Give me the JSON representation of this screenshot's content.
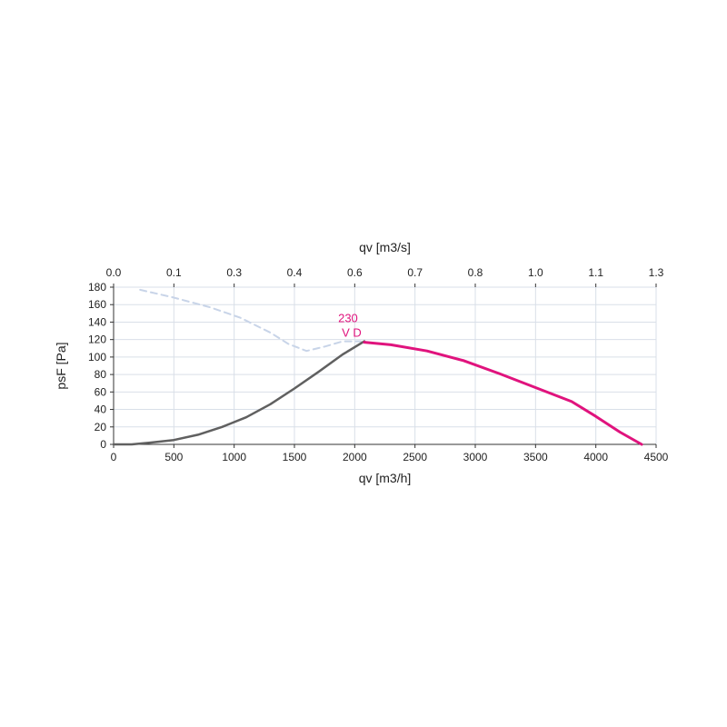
{
  "chart_data": {
    "type": "line",
    "xlabel": "qv [m3/h]",
    "ylabel": "psF [Pa]",
    "x2label": "qv [m3/s]",
    "xlim": [
      0,
      4500
    ],
    "ylim": [
      0,
      180
    ],
    "x_ticks": [
      "0",
      "500",
      "1000",
      "1500",
      "2000",
      "2500",
      "3000",
      "3500",
      "4000",
      "4500"
    ],
    "y_ticks": [
      "0",
      "20",
      "40",
      "60",
      "80",
      "100",
      "120",
      "140",
      "160",
      "180"
    ],
    "x2_ticks": [
      "0.0",
      "0.1",
      "0.3",
      "0.4",
      "0.6",
      "0.7",
      "0.8",
      "1.0",
      "1.1",
      "1.3"
    ],
    "grid": true,
    "annotation": {
      "line1": "230",
      "line2": "V D"
    },
    "colors": {
      "working_curve": "#e0137d",
      "system_curve": "#606060",
      "dashed_curve": "#c8d4e8",
      "grid": "#d9dfe8"
    },
    "series": [
      {
        "style": "dashed",
        "x": [
          220,
          500,
          800,
          1050,
          1300,
          1450,
          1600,
          1750,
          1900,
          2050
        ],
        "y": [
          177,
          168,
          157,
          145,
          128,
          115,
          107,
          112,
          118,
          118
        ]
      },
      {
        "style": "system",
        "x": [
          0,
          150,
          300,
          500,
          700,
          900,
          1100,
          1300,
          1500,
          1700,
          1900,
          2080
        ],
        "y": [
          0,
          0,
          2,
          5,
          11,
          20,
          31,
          46,
          64,
          83,
          103,
          118
        ]
      },
      {
        "style": "working",
        "x": [
          2080,
          2300,
          2600,
          2900,
          3200,
          3500,
          3800,
          4000,
          4200,
          4380
        ],
        "y": [
          117,
          114,
          107,
          96,
          81,
          65,
          49,
          32,
          14,
          0
        ]
      }
    ]
  }
}
